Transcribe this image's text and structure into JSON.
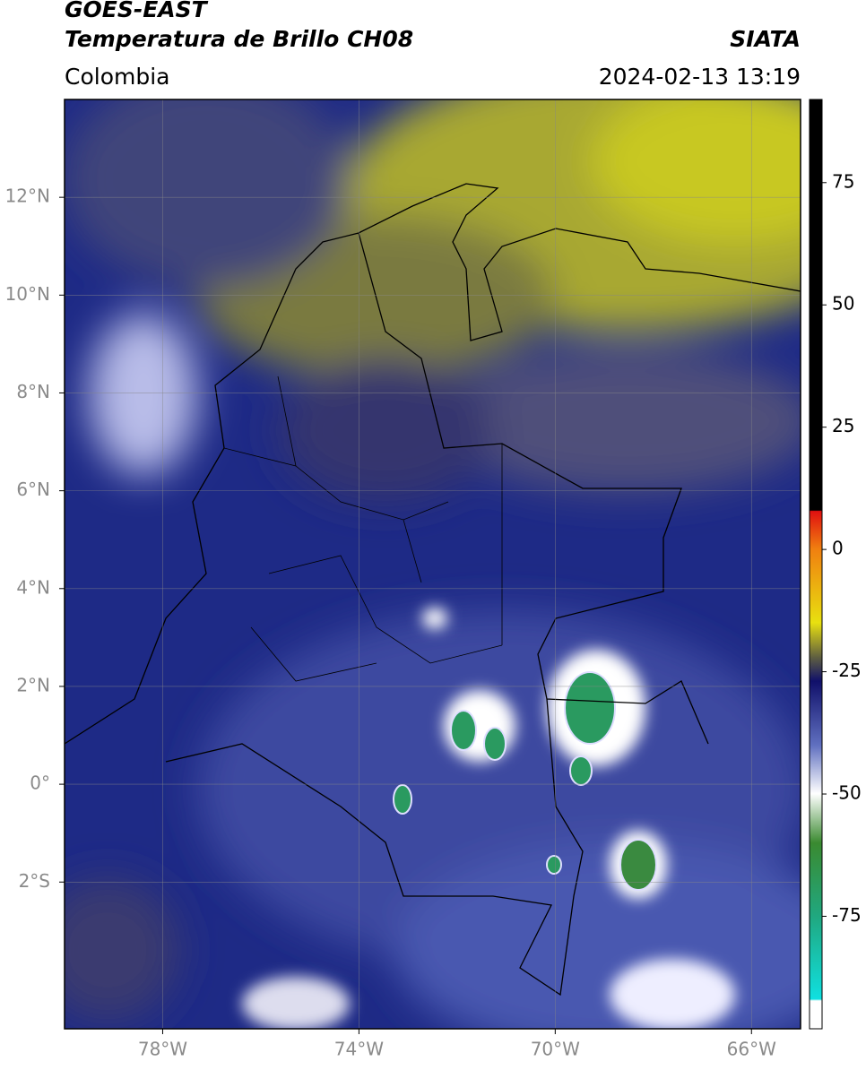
{
  "header": {
    "title_line1": "GOES-EAST",
    "title_line2": "Temperatura de Brillo CH08",
    "source": "SIATA",
    "region": "Colombia",
    "datetime": "2024-02-13 13:19"
  },
  "map": {
    "lon_range": [
      -80,
      -65
    ],
    "lat_range": [
      -5,
      14
    ],
    "lat_ticks": [
      {
        "value": 12,
        "label": "12°N"
      },
      {
        "value": 10,
        "label": "10°N"
      },
      {
        "value": 8,
        "label": "8°N"
      },
      {
        "value": 6,
        "label": "6°N"
      },
      {
        "value": 4,
        "label": "4°N"
      },
      {
        "value": 2,
        "label": "2°N"
      },
      {
        "value": 0,
        "label": "0°"
      },
      {
        "value": -2,
        "label": "2°S"
      }
    ],
    "lon_ticks": [
      {
        "value": -78,
        "label": "78°W"
      },
      {
        "value": -74,
        "label": "74°W"
      },
      {
        "value": -70,
        "label": "70°W"
      },
      {
        "value": -66,
        "label": "66°W"
      }
    ]
  },
  "colorbar": {
    "range": [
      -98,
      92
    ],
    "ticks": [
      75,
      50,
      25,
      0,
      -25,
      -50,
      -75
    ]
  }
}
